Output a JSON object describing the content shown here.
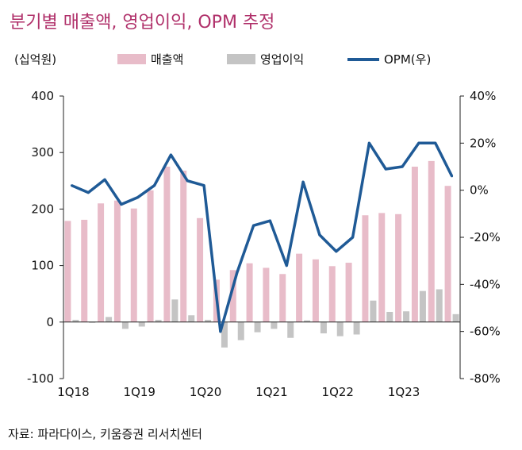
{
  "title": "분기별 매출액, 영업이익, OPM 추정",
  "unit_label": "(십억원)",
  "source": "자료: 파라다이스, 키움증권 리서치센터",
  "colors": {
    "revenue": "#e8bcc9",
    "op_income": "#c4c4c4",
    "opm": "#1f5a96",
    "title": "#b0306a"
  },
  "chart_data": {
    "type": "bar+line",
    "categories": [
      "1Q18",
      "2Q18",
      "3Q18",
      "4Q18",
      "1Q19",
      "2Q19",
      "3Q19",
      "4Q19",
      "1Q20",
      "2Q20",
      "3Q20",
      "4Q20",
      "1Q21",
      "2Q21",
      "3Q21",
      "4Q21",
      "1Q22",
      "2Q22",
      "3Q22",
      "4Q22",
      "1Q23",
      "2Q23",
      "3Q23",
      "4Q23"
    ],
    "x_tick_labels": [
      "1Q18",
      "1Q19",
      "1Q20",
      "1Q21",
      "1Q22",
      "1Q23"
    ],
    "x_tick_indices": [
      0,
      4,
      8,
      12,
      16,
      20
    ],
    "series": [
      {
        "name": "매출액",
        "type": "bar",
        "axis": "left",
        "values": [
          179,
          181,
          210,
          215,
          201,
          233,
          275,
          268,
          184,
          75,
          92,
          104,
          96,
          85,
          121,
          111,
          99,
          105,
          189,
          193,
          191,
          275,
          285,
          241
        ]
      },
      {
        "name": "영업이익",
        "type": "bar",
        "axis": "left",
        "values": [
          4,
          -1,
          9,
          -12,
          -8,
          4,
          40,
          12,
          4,
          -45,
          -32,
          -18,
          -12,
          -28,
          3,
          -20,
          -25,
          -22,
          38,
          18,
          19,
          55,
          58,
          14
        ]
      },
      {
        "name": "OPM(우)",
        "type": "line",
        "axis": "right",
        "values": [
          2,
          -1,
          4.5,
          -6,
          -3,
          2,
          15,
          4,
          2,
          -60,
          -35,
          -15,
          -13,
          -32,
          3.5,
          -19,
          -26,
          -20,
          20,
          9,
          10,
          20,
          20,
          6
        ]
      }
    ],
    "left_axis": {
      "ylim": [
        -100,
        400
      ],
      "ticks": [
        -100,
        0,
        100,
        200,
        300,
        400
      ],
      "labels": [
        "-100",
        "0",
        "100",
        "200",
        "300",
        "400"
      ]
    },
    "right_axis": {
      "ylim": [
        -80,
        40
      ],
      "ticks": [
        -80,
        -60,
        -40,
        -20,
        0,
        20,
        40
      ],
      "labels": [
        "-80%",
        "-60%",
        "-40%",
        "-20%",
        "0%",
        "20%",
        "40%"
      ]
    },
    "legend": [
      "매출액",
      "영업이익",
      "OPM(우)"
    ],
    "legend_position": "top"
  }
}
